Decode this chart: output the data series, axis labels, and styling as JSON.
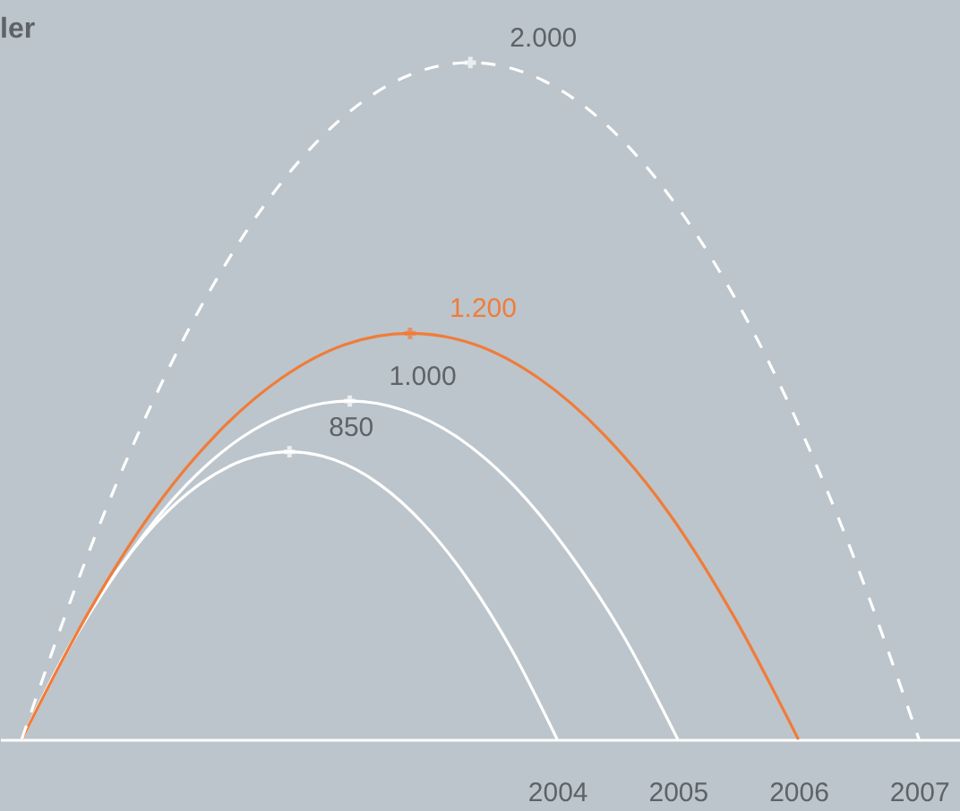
{
  "chart_data": {
    "type": "line",
    "title": "ler",
    "xlim": [
      1999.38,
      2007.34
    ],
    "ylim": [
      0,
      2185
    ],
    "xticks": [
      2004,
      2005,
      2006,
      2007
    ],
    "grid": false,
    "tick_labels": "x",
    "series": [
      {
        "color": "#ffffff",
        "line_style": "solid",
        "x": [
          1999.56,
          1999.93,
          2000.3,
          2000.67,
          2001.04,
          2001.41,
          2001.78,
          2002.15,
          2002.52,
          2002.89,
          2003.26,
          2003.63,
          2004
        ],
        "values": [
          0,
          259.8,
          472.2,
          637.5,
          755.6,
          826.4,
          850,
          826.4,
          755.6,
          637.5,
          472.2,
          259.8,
          0
        ],
        "value_labels": [
          null,
          null,
          null,
          null,
          null,
          null,
          "850",
          null,
          null,
          null,
          null,
          null,
          null
        ]
      },
      {
        "color": "#ffffff",
        "line_style": "solid",
        "x": [
          1999.56,
          2000.01,
          2000.47,
          2000.92,
          2001.37,
          2001.83,
          2002.28,
          2002.73,
          2003.19,
          2003.64,
          2004.09,
          2004.55,
          2005
        ],
        "values": [
          0,
          305.6,
          555.6,
          750,
          888.9,
          972.2,
          1000,
          972.2,
          888.9,
          750,
          555.6,
          305.6,
          0
        ],
        "value_labels": [
          null,
          null,
          null,
          null,
          null,
          null,
          "1.000",
          null,
          null,
          null,
          null,
          null,
          null
        ]
      },
      {
        "color": "#f07c3a",
        "line_style": "solid",
        "x": [
          1999.56,
          2000.1,
          2000.63,
          2001.17,
          2001.71,
          2002.24,
          2002.78,
          2003.32,
          2003.85,
          2004.39,
          2004.93,
          2005.46,
          2006
        ],
        "values": [
          0,
          366.7,
          666.7,
          900,
          1066.7,
          1166.7,
          1200,
          1166.7,
          1066.7,
          900,
          666.7,
          366.7,
          0
        ],
        "value_labels": [
          null,
          null,
          null,
          null,
          null,
          null,
          "1.200",
          null,
          null,
          null,
          null,
          null,
          null
        ]
      },
      {
        "color": "#ffffff",
        "line_style": "dashed",
        "x": [
          1999.56,
          2000.18,
          2000.8,
          2001.42,
          2002.04,
          2002.66,
          2003.28,
          2003.9,
          2004.52,
          2005.14,
          2005.76,
          2006.38,
          2007
        ],
        "values": [
          0,
          611.1,
          1111.1,
          1500,
          1777.8,
          1944.4,
          2000,
          1944.4,
          1777.8,
          1500,
          1111.1,
          611.1,
          0
        ],
        "value_labels": [
          null,
          null,
          null,
          null,
          null,
          null,
          "2.000",
          null,
          null,
          null,
          null,
          null,
          null
        ]
      }
    ]
  }
}
